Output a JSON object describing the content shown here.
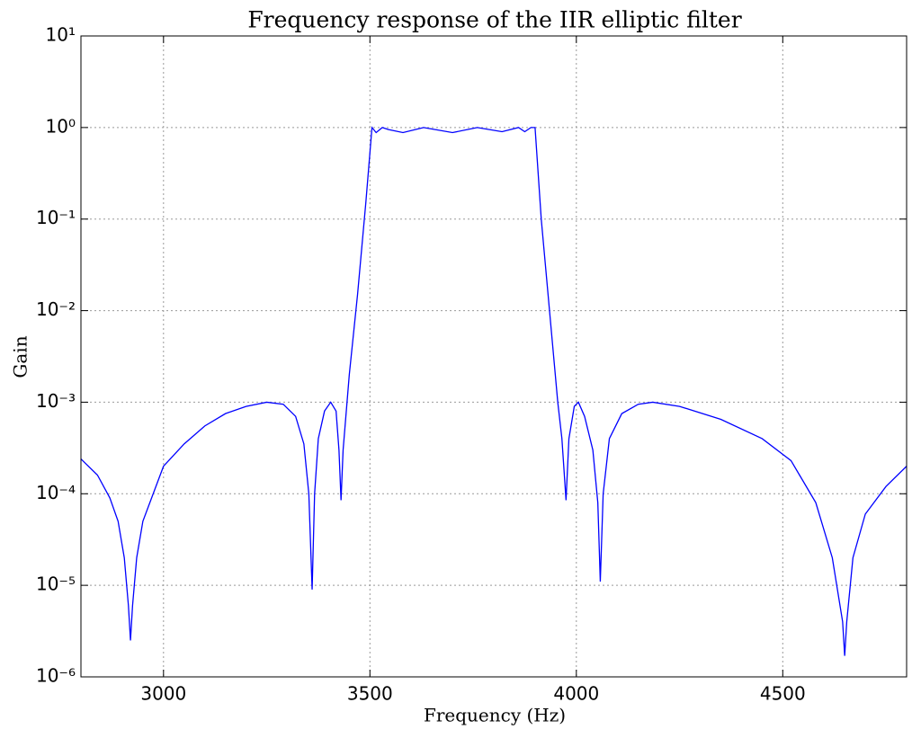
{
  "chart_data": {
    "type": "line",
    "title": "Frequency response of the IIR elliptic filter",
    "xlabel": "Frequency (Hz)",
    "ylabel": "Gain",
    "xlim": [
      2800,
      4800
    ],
    "ylim": [
      1e-06,
      10
    ],
    "log_y": true,
    "grid": true,
    "xticks": [
      3000,
      3500,
      4000,
      4500
    ],
    "yticks": [
      {
        "value": 1e-06,
        "label": "10⁻⁶"
      },
      {
        "value": 1e-05,
        "label": "10⁻⁵"
      },
      {
        "value": 0.0001,
        "label": "10⁻⁴"
      },
      {
        "value": 0.001,
        "label": "10⁻³"
      },
      {
        "value": 0.01,
        "label": "10⁻²"
      },
      {
        "value": 0.1,
        "label": "10⁻¹"
      },
      {
        "value": 1,
        "label": "10⁰"
      },
      {
        "value": 10,
        "label": "10¹"
      }
    ],
    "x": [
      2800,
      2840,
      2870,
      2890,
      2905,
      2915,
      2920,
      2925,
      2935,
      2950,
      2975,
      3000,
      3050,
      3100,
      3150,
      3200,
      3250,
      3290,
      3320,
      3340,
      3352,
      3360,
      3366,
      3375,
      3390,
      3405,
      3418,
      3425,
      3430,
      3435,
      3450,
      3470,
      3490,
      3505,
      3515,
      3530,
      3545,
      3580,
      3630,
      3700,
      3760,
      3820,
      3860,
      3875,
      3890,
      3900,
      3915,
      3935,
      3955,
      3965,
      3975,
      3982,
      3995,
      4005,
      4020,
      4040,
      4052,
      4058,
      4065,
      4080,
      4110,
      4150,
      4185,
      4250,
      4350,
      4450,
      4520,
      4580,
      4620,
      4645,
      4650,
      4655,
      4670,
      4700,
      4750,
      4800
    ],
    "series": [
      {
        "color": "#0000ff",
        "values": [
          0.00024,
          0.00016,
          9e-05,
          5e-05,
          2e-05,
          6e-06,
          2.5e-06,
          6e-06,
          2e-05,
          5e-05,
          0.0001,
          0.0002,
          0.00035,
          0.00055,
          0.00075,
          0.0009,
          0.001,
          0.00095,
          0.0007,
          0.00035,
          0.0001,
          9e-06,
          0.0001,
          0.0004,
          0.0008,
          0.001,
          0.0008,
          0.0003,
          8.5e-05,
          0.0003,
          0.002,
          0.015,
          0.15,
          1.0,
          0.88,
          1.0,
          0.95,
          0.88,
          1.0,
          0.88,
          1.0,
          0.9,
          1.0,
          0.9,
          1.0,
          1.0,
          0.1,
          0.01,
          0.001,
          0.0004,
          8.5e-05,
          0.0004,
          0.0009,
          0.001,
          0.0007,
          0.0003,
          8e-05,
          1.1e-05,
          0.0001,
          0.0004,
          0.00075,
          0.00095,
          0.001,
          0.0009,
          0.00065,
          0.0004,
          0.00023,
          8e-05,
          2e-05,
          4e-06,
          1.7e-06,
          4e-06,
          2e-05,
          6e-05,
          0.00012,
          0.0002
        ]
      }
    ]
  }
}
